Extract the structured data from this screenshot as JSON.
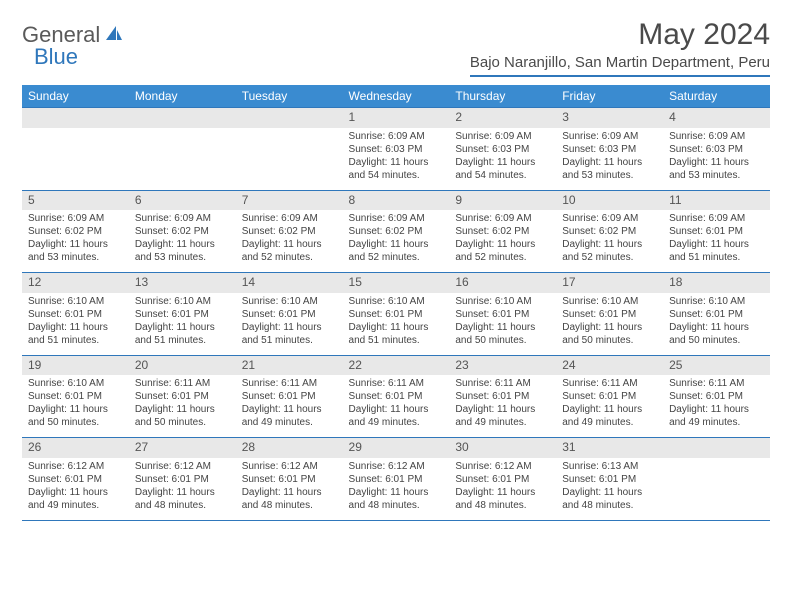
{
  "logo": {
    "text1": "General",
    "text2": "Blue"
  },
  "title": "May 2024",
  "location": "Bajo Naranjillo, San Martin Department, Peru",
  "columns": [
    "Sunday",
    "Monday",
    "Tuesday",
    "Wednesday",
    "Thursday",
    "Friday",
    "Saturday"
  ],
  "colors": {
    "header_bg": "#3a8bd0",
    "accent": "#2f77bb",
    "daynum_bg": "#e8e8e8",
    "text": "#444444"
  },
  "weeks": [
    [
      {
        "n": "",
        "sr": "",
        "ss": "",
        "dl": ""
      },
      {
        "n": "",
        "sr": "",
        "ss": "",
        "dl": ""
      },
      {
        "n": "",
        "sr": "",
        "ss": "",
        "dl": ""
      },
      {
        "n": "1",
        "sr": "Sunrise: 6:09 AM",
        "ss": "Sunset: 6:03 PM",
        "dl": "Daylight: 11 hours and 54 minutes."
      },
      {
        "n": "2",
        "sr": "Sunrise: 6:09 AM",
        "ss": "Sunset: 6:03 PM",
        "dl": "Daylight: 11 hours and 54 minutes."
      },
      {
        "n": "3",
        "sr": "Sunrise: 6:09 AM",
        "ss": "Sunset: 6:03 PM",
        "dl": "Daylight: 11 hours and 53 minutes."
      },
      {
        "n": "4",
        "sr": "Sunrise: 6:09 AM",
        "ss": "Sunset: 6:03 PM",
        "dl": "Daylight: 11 hours and 53 minutes."
      }
    ],
    [
      {
        "n": "5",
        "sr": "Sunrise: 6:09 AM",
        "ss": "Sunset: 6:02 PM",
        "dl": "Daylight: 11 hours and 53 minutes."
      },
      {
        "n": "6",
        "sr": "Sunrise: 6:09 AM",
        "ss": "Sunset: 6:02 PM",
        "dl": "Daylight: 11 hours and 53 minutes."
      },
      {
        "n": "7",
        "sr": "Sunrise: 6:09 AM",
        "ss": "Sunset: 6:02 PM",
        "dl": "Daylight: 11 hours and 52 minutes."
      },
      {
        "n": "8",
        "sr": "Sunrise: 6:09 AM",
        "ss": "Sunset: 6:02 PM",
        "dl": "Daylight: 11 hours and 52 minutes."
      },
      {
        "n": "9",
        "sr": "Sunrise: 6:09 AM",
        "ss": "Sunset: 6:02 PM",
        "dl": "Daylight: 11 hours and 52 minutes."
      },
      {
        "n": "10",
        "sr": "Sunrise: 6:09 AM",
        "ss": "Sunset: 6:02 PM",
        "dl": "Daylight: 11 hours and 52 minutes."
      },
      {
        "n": "11",
        "sr": "Sunrise: 6:09 AM",
        "ss": "Sunset: 6:01 PM",
        "dl": "Daylight: 11 hours and 51 minutes."
      }
    ],
    [
      {
        "n": "12",
        "sr": "Sunrise: 6:10 AM",
        "ss": "Sunset: 6:01 PM",
        "dl": "Daylight: 11 hours and 51 minutes."
      },
      {
        "n": "13",
        "sr": "Sunrise: 6:10 AM",
        "ss": "Sunset: 6:01 PM",
        "dl": "Daylight: 11 hours and 51 minutes."
      },
      {
        "n": "14",
        "sr": "Sunrise: 6:10 AM",
        "ss": "Sunset: 6:01 PM",
        "dl": "Daylight: 11 hours and 51 minutes."
      },
      {
        "n": "15",
        "sr": "Sunrise: 6:10 AM",
        "ss": "Sunset: 6:01 PM",
        "dl": "Daylight: 11 hours and 51 minutes."
      },
      {
        "n": "16",
        "sr": "Sunrise: 6:10 AM",
        "ss": "Sunset: 6:01 PM",
        "dl": "Daylight: 11 hours and 50 minutes."
      },
      {
        "n": "17",
        "sr": "Sunrise: 6:10 AM",
        "ss": "Sunset: 6:01 PM",
        "dl": "Daylight: 11 hours and 50 minutes."
      },
      {
        "n": "18",
        "sr": "Sunrise: 6:10 AM",
        "ss": "Sunset: 6:01 PM",
        "dl": "Daylight: 11 hours and 50 minutes."
      }
    ],
    [
      {
        "n": "19",
        "sr": "Sunrise: 6:10 AM",
        "ss": "Sunset: 6:01 PM",
        "dl": "Daylight: 11 hours and 50 minutes."
      },
      {
        "n": "20",
        "sr": "Sunrise: 6:11 AM",
        "ss": "Sunset: 6:01 PM",
        "dl": "Daylight: 11 hours and 50 minutes."
      },
      {
        "n": "21",
        "sr": "Sunrise: 6:11 AM",
        "ss": "Sunset: 6:01 PM",
        "dl": "Daylight: 11 hours and 49 minutes."
      },
      {
        "n": "22",
        "sr": "Sunrise: 6:11 AM",
        "ss": "Sunset: 6:01 PM",
        "dl": "Daylight: 11 hours and 49 minutes."
      },
      {
        "n": "23",
        "sr": "Sunrise: 6:11 AM",
        "ss": "Sunset: 6:01 PM",
        "dl": "Daylight: 11 hours and 49 minutes."
      },
      {
        "n": "24",
        "sr": "Sunrise: 6:11 AM",
        "ss": "Sunset: 6:01 PM",
        "dl": "Daylight: 11 hours and 49 minutes."
      },
      {
        "n": "25",
        "sr": "Sunrise: 6:11 AM",
        "ss": "Sunset: 6:01 PM",
        "dl": "Daylight: 11 hours and 49 minutes."
      }
    ],
    [
      {
        "n": "26",
        "sr": "Sunrise: 6:12 AM",
        "ss": "Sunset: 6:01 PM",
        "dl": "Daylight: 11 hours and 49 minutes."
      },
      {
        "n": "27",
        "sr": "Sunrise: 6:12 AM",
        "ss": "Sunset: 6:01 PM",
        "dl": "Daylight: 11 hours and 48 minutes."
      },
      {
        "n": "28",
        "sr": "Sunrise: 6:12 AM",
        "ss": "Sunset: 6:01 PM",
        "dl": "Daylight: 11 hours and 48 minutes."
      },
      {
        "n": "29",
        "sr": "Sunrise: 6:12 AM",
        "ss": "Sunset: 6:01 PM",
        "dl": "Daylight: 11 hours and 48 minutes."
      },
      {
        "n": "30",
        "sr": "Sunrise: 6:12 AM",
        "ss": "Sunset: 6:01 PM",
        "dl": "Daylight: 11 hours and 48 minutes."
      },
      {
        "n": "31",
        "sr": "Sunrise: 6:13 AM",
        "ss": "Sunset: 6:01 PM",
        "dl": "Daylight: 11 hours and 48 minutes."
      },
      {
        "n": "",
        "sr": "",
        "ss": "",
        "dl": ""
      }
    ]
  ]
}
